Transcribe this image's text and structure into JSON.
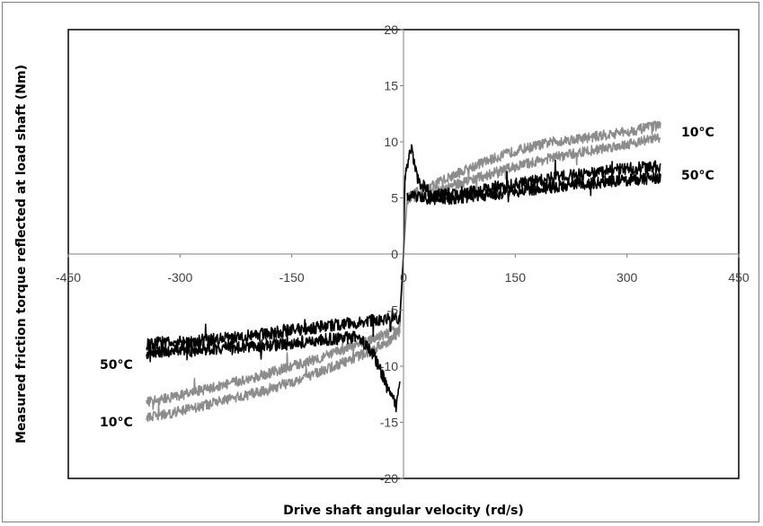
{
  "chart_data": {
    "type": "line",
    "title": "",
    "xlabel": "Drive shaft angular velocity (rd/s)",
    "ylabel": "Measured friction torque reflected at load shaft (Nm)",
    "xlim": [
      -450,
      450
    ],
    "ylim": [
      -20,
      20
    ],
    "xticks": [
      -450,
      -300,
      -150,
      0,
      150,
      300,
      450
    ],
    "yticks": [
      -20,
      -15,
      -10,
      -5,
      0,
      5,
      10,
      15,
      20
    ],
    "xtick_labels": [
      "-450",
      "-300",
      "-150",
      "0",
      "150",
      "300",
      "450"
    ],
    "ytick_labels": [
      "-20",
      "-15",
      "-10",
      "-5",
      "0",
      "5",
      "10",
      "15",
      "20"
    ],
    "grid": false,
    "legend": "none (labels placed beside curves)",
    "series": [
      {
        "name": "10°C",
        "color": "#8c8c8c",
        "label_positive": "10°C",
        "label_negative": "10°C",
        "positive_upper": {
          "x": [
            5,
            20,
            50,
            100,
            150,
            200,
            250,
            300,
            345
          ],
          "y": [
            5,
            5.5,
            6.5,
            8,
            9.2,
            10,
            10.4,
            10.9,
            11.5
          ]
        },
        "positive_lower": {
          "x": [
            5,
            20,
            50,
            100,
            150,
            200,
            250,
            300,
            345
          ],
          "y": [
            4.8,
            5.2,
            5.8,
            6.8,
            7.8,
            8.6,
            9.2,
            9.8,
            10.4
          ]
        },
        "negative_upper": {
          "x": [
            -345,
            -300,
            -250,
            -200,
            -150,
            -100,
            -50,
            -20,
            -5
          ],
          "y": [
            -13.2,
            -12.6,
            -11.8,
            -11,
            -10,
            -9,
            -7.8,
            -7,
            -6.5
          ]
        },
        "negative_lower": {
          "x": [
            -345,
            -300,
            -250,
            -200,
            -150,
            -100,
            -50,
            -20,
            -5
          ],
          "y": [
            -14.6,
            -14,
            -13.2,
            -12.4,
            -11.4,
            -10.2,
            -8.8,
            -7.8,
            -7
          ]
        }
      },
      {
        "name": "50°C",
        "color": "#000000",
        "label_positive": "50°C",
        "label_negative": "50°C",
        "positive_upper": {
          "x": [
            2,
            10,
            20,
            40,
            100,
            150,
            200,
            250,
            300,
            345
          ],
          "y": [
            7,
            9.5,
            6.5,
            5.2,
            5.6,
            6.2,
            6.8,
            7.2,
            7.6,
            7.8
          ]
        },
        "positive_lower": {
          "x": [
            5,
            20,
            50,
            100,
            150,
            200,
            250,
            300,
            345
          ],
          "y": [
            5.2,
            5,
            4.9,
            5.2,
            5.6,
            6,
            6.3,
            6.6,
            6.8
          ]
        },
        "negative_upper": {
          "x": [
            -345,
            -300,
            -250,
            -200,
            -150,
            -100,
            -50,
            -20,
            -5
          ],
          "y": [
            -8,
            -7.8,
            -7.6,
            -7.2,
            -6.8,
            -6.4,
            -6,
            -5.8,
            -5.8
          ]
        },
        "negative_lower": {
          "x": [
            -345,
            -300,
            -250,
            -200,
            -150,
            -100,
            -60,
            -40,
            -20,
            -10,
            -5
          ],
          "y": [
            -8.8,
            -8.6,
            -8.4,
            -8.2,
            -8,
            -7.6,
            -7.4,
            -9,
            -12,
            -13.5,
            -11.5
          ]
        }
      }
    ]
  }
}
